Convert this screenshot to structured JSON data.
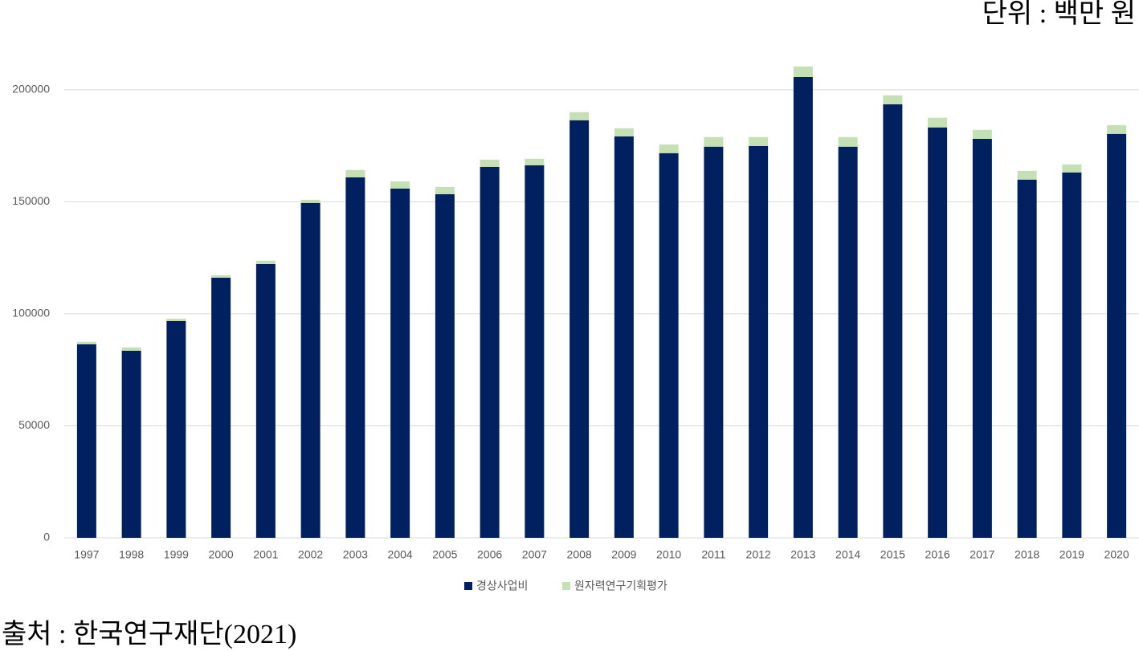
{
  "chart_data": {
    "type": "stacked_bar",
    "unit_note": "단위 : 백만 원",
    "source": "출처 : 한국연구재단(2021)",
    "categories": [
      "1997",
      "1998",
      "1999",
      "2000",
      "2001",
      "2002",
      "2003",
      "2004",
      "2005",
      "2006",
      "2007",
      "2008",
      "2009",
      "2010",
      "2011",
      "2012",
      "2013",
      "2014",
      "2015",
      "2016",
      "2017",
      "2018",
      "2019",
      "2020"
    ],
    "series": [
      {
        "name": "경상사업비",
        "color": "#002060",
        "values": [
          86400,
          83500,
          96800,
          116100,
          122200,
          149500,
          160900,
          155900,
          153400,
          165600,
          166300,
          186400,
          179200,
          171700,
          174600,
          174900,
          205700,
          174600,
          193500,
          183200,
          178100,
          159900,
          163100,
          180300
        ]
      },
      {
        "name": "원자력연구기획평가",
        "color": "#c5e0b4",
        "values": [
          1100,
          1500,
          1000,
          1100,
          1500,
          1400,
          3300,
          3200,
          3200,
          3200,
          2900,
          3600,
          3600,
          3900,
          4300,
          4000,
          4700,
          4300,
          4000,
          4300,
          4000,
          3900,
          3600,
          3900
        ]
      }
    ],
    "ylim": [
      0,
      220000
    ],
    "yticks": [
      0,
      50000,
      100000,
      150000,
      200000
    ],
    "grid": true
  }
}
